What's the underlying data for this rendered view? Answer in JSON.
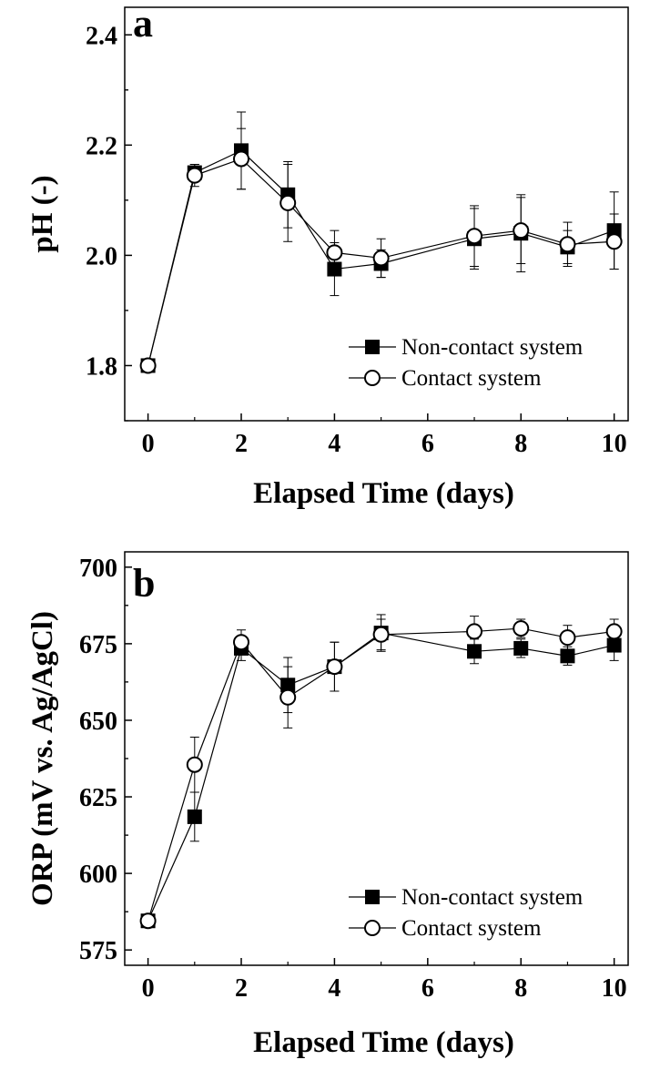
{
  "chart_data": [
    {
      "type": "line",
      "panel_label": "a",
      "xlabel": "Elapsed Time (days)",
      "ylabel": "pH (-)",
      "xlim": [
        -0.5,
        10.3
      ],
      "ylim": [
        1.7,
        2.45
      ],
      "xticks": [
        0,
        2,
        4,
        6,
        8,
        10
      ],
      "yticks": [
        1.8,
        2.0,
        2.2,
        2.4
      ],
      "ytick_labels": [
        "1.8",
        "2.0",
        "2.2",
        "2.4"
      ],
      "legend_position": "bottom-right",
      "grid": false,
      "x": [
        0,
        1,
        2,
        3,
        4,
        5,
        7,
        8,
        9,
        10
      ],
      "series": [
        {
          "name": "Non-contact system",
          "marker": "filled-square",
          "values": [
            1.8,
            2.15,
            2.19,
            2.11,
            1.975,
            1.985,
            2.03,
            2.04,
            2.015,
            2.045
          ],
          "errors": [
            0.0,
            0.015,
            0.07,
            0.06,
            0.048,
            0.025,
            0.055,
            0.07,
            0.03,
            0.07
          ]
        },
        {
          "name": "Contact system",
          "marker": "open-circle",
          "values": [
            1.8,
            2.145,
            2.175,
            2.095,
            2.005,
            1.995,
            2.035,
            2.045,
            2.02,
            2.025
          ],
          "errors": [
            0.0,
            0.02,
            0.055,
            0.07,
            0.04,
            0.035,
            0.055,
            0.06,
            0.04,
            0.05
          ]
        }
      ]
    },
    {
      "type": "line",
      "panel_label": "b",
      "xlabel": "Elapsed Time (days)",
      "ylabel": "ORP (mV vs. Ag/AgCl)",
      "xlim": [
        -0.5,
        10.3
      ],
      "ylim": [
        570,
        705
      ],
      "xticks": [
        0,
        2,
        4,
        6,
        8,
        10
      ],
      "yticks": [
        575,
        600,
        625,
        650,
        675,
        700
      ],
      "ytick_labels": [
        "575",
        "600",
        "625",
        "650",
        "675",
        "700"
      ],
      "legend_position": "bottom-right",
      "grid": false,
      "x": [
        0,
        1,
        2,
        3,
        4,
        5,
        7,
        8,
        9,
        10
      ],
      "series": [
        {
          "name": "Non-contact system",
          "marker": "filled-square",
          "values": [
            584.5,
            618.5,
            673.5,
            661.5,
            667.5,
            678.5,
            672.5,
            673.5,
            671.0,
            674.5
          ],
          "errors": [
            0.0,
            8.0,
            4.0,
            9.0,
            8.0,
            6.0,
            4.0,
            3.0,
            3.0,
            5.0
          ]
        },
        {
          "name": "Contact system",
          "marker": "open-circle",
          "values": [
            584.5,
            635.5,
            675.5,
            657.5,
            667.5,
            678.0,
            679.0,
            680.0,
            677.0,
            679.0
          ],
          "errors": [
            0.0,
            9.0,
            4.0,
            10.0,
            8.0,
            5.0,
            5.0,
            3.0,
            4.0,
            4.0
          ]
        }
      ]
    }
  ]
}
